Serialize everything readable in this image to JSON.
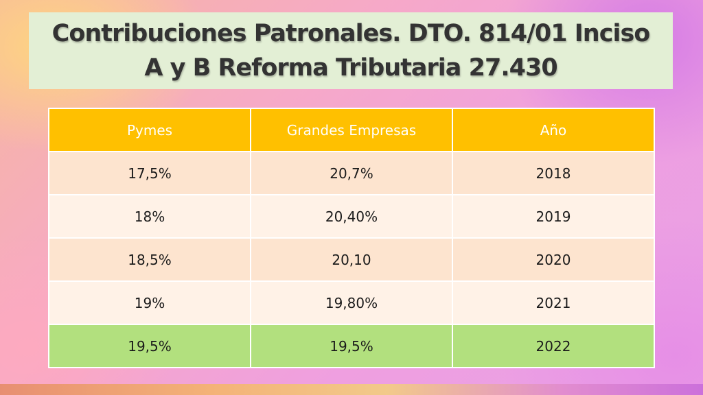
{
  "title": {
    "line1": "Contribuciones Patronales. DTO. 814/01 Inciso",
    "line2": "A y B Reforma Tributaria 27.430"
  },
  "table": {
    "headers": [
      "Pymes",
      "Grandes Empresas",
      "Año"
    ],
    "rows": [
      [
        "17,5%",
        "20,7%",
        "2018"
      ],
      [
        "18%",
        "20,40%",
        "2019"
      ],
      [
        "18,5%",
        "20,10",
        "2020"
      ],
      [
        "19%",
        "19,80%",
        "2021"
      ],
      [
        "19,5%",
        "19,5%",
        "2022"
      ]
    ]
  },
  "colors": {
    "header": "#ffc000",
    "row_dark": "#fde4cf",
    "row_light": "#fff2e7",
    "highlight_row": "#b2e07e",
    "title_bg": "#e3efd5"
  }
}
